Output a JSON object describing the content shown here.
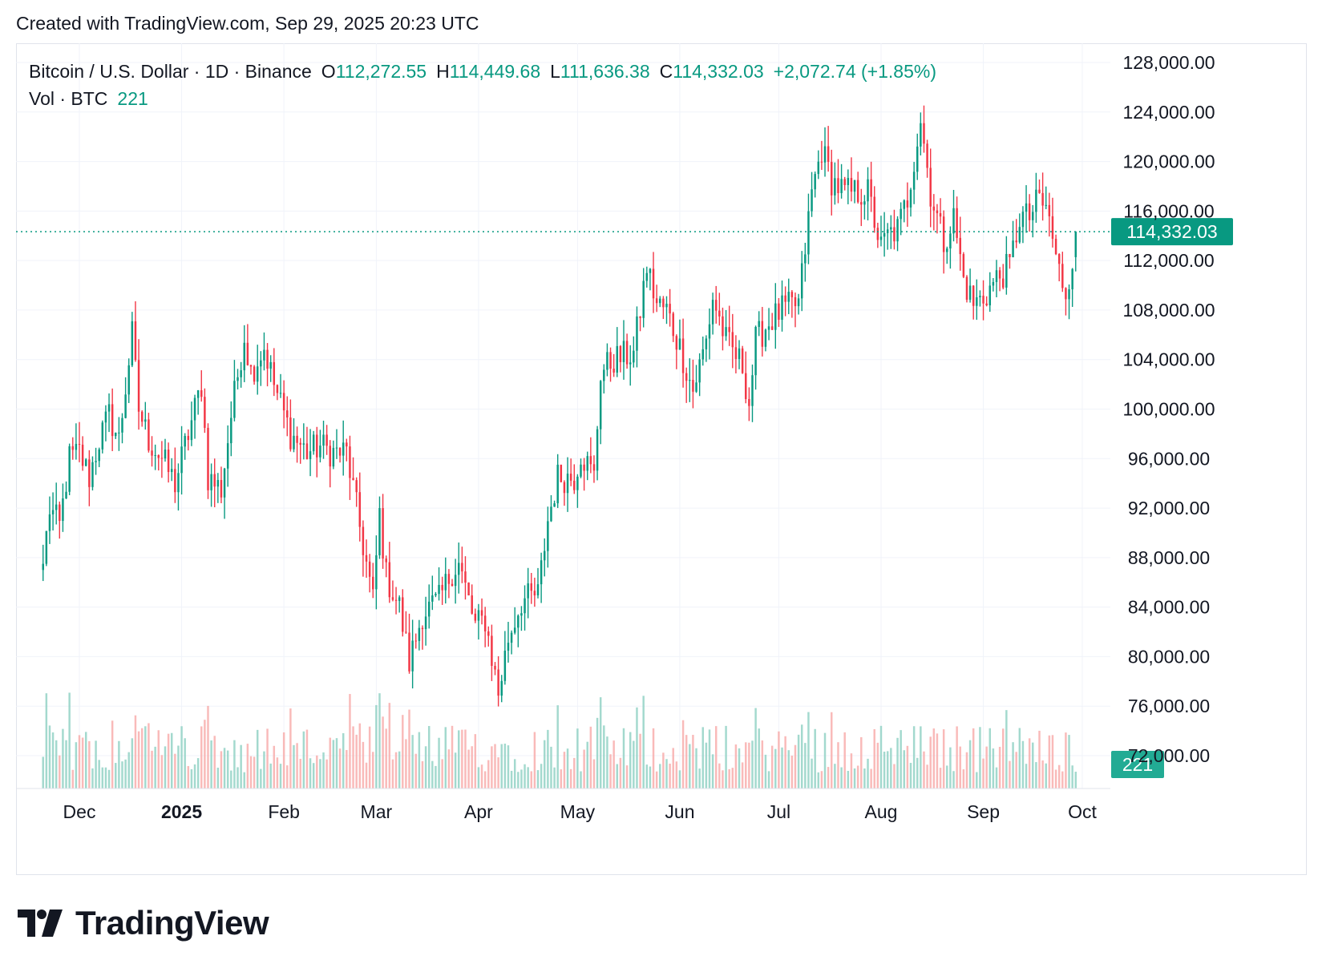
{
  "caption": "Created with TradingView.com, Sep 29, 2025 20:23 UTC",
  "legend": {
    "symbol": "Bitcoin / U.S. Dollar · 1D · Binance",
    "open_label": "O",
    "open": "112,272.55",
    "high_label": "H",
    "high": "114,449.68",
    "low_label": "L",
    "low": "111,636.38",
    "close_label": "C",
    "close": "114,332.03",
    "change": "+2,072.74 (+1.85%)",
    "vol_label": "Vol · BTC",
    "vol": "221"
  },
  "colors": {
    "up": "#089981",
    "down": "#f23645",
    "grid": "#f0f3fa",
    "text": "#131722"
  },
  "chart_data": {
    "type": "candlestick",
    "ylim": [
      72000,
      129000
    ],
    "y_ticks": [
      "128,000.00",
      "124,000.00",
      "120,000.00",
      "116,000.00",
      "112,000.00",
      "108,000.00",
      "104,000.00",
      "100,000.00",
      "96,000.00",
      "92,000.00",
      "88,000.00",
      "84,000.00",
      "80,000.00",
      "76,000.00",
      "72,000.00"
    ],
    "x_ticks": [
      {
        "label": "Dec",
        "date": "2024-12-01",
        "bold": false
      },
      {
        "label": "2025",
        "date": "2025-01-01",
        "bold": true
      },
      {
        "label": "Feb",
        "date": "2025-02-01",
        "bold": false
      },
      {
        "label": "Mar",
        "date": "2025-03-01",
        "bold": false
      },
      {
        "label": "Apr",
        "date": "2025-04-01",
        "bold": false
      },
      {
        "label": "May",
        "date": "2025-05-01",
        "bold": false
      },
      {
        "label": "Jun",
        "date": "2025-06-01",
        "bold": false
      },
      {
        "label": "Jul",
        "date": "2025-07-01",
        "bold": false
      },
      {
        "label": "Aug",
        "date": "2025-08-01",
        "bold": false
      },
      {
        "label": "Sep",
        "date": "2025-09-01",
        "bold": false
      },
      {
        "label": "Oct",
        "date": "2025-10-01",
        "bold": false
      }
    ],
    "current_price": 114332.03,
    "current_price_label": "114,332.03",
    "current_volume_label": "221",
    "path": [
      [
        "2024-11-20",
        87500
      ],
      [
        "2024-11-22",
        92000
      ],
      [
        "2024-11-25",
        90500
      ],
      [
        "2024-11-28",
        96000
      ],
      [
        "2024-12-01",
        96500
      ],
      [
        "2024-12-04",
        94500
      ],
      [
        "2024-12-07",
        97500
      ],
      [
        "2024-12-10",
        99500
      ],
      [
        "2024-12-13",
        97500
      ],
      [
        "2024-12-17",
        106000
      ],
      [
        "2024-12-19",
        100000
      ],
      [
        "2024-12-22",
        97500
      ],
      [
        "2024-12-26",
        96000
      ],
      [
        "2024-12-30",
        94000
      ],
      [
        "2025-01-03",
        98000
      ],
      [
        "2025-01-07",
        102000
      ],
      [
        "2025-01-09",
        94500
      ],
      [
        "2025-01-13",
        93500
      ],
      [
        "2025-01-16",
        99500
      ],
      [
        "2025-01-20",
        106000
      ],
      [
        "2025-01-22",
        103000
      ],
      [
        "2025-01-26",
        105000
      ],
      [
        "2025-01-29",
        102000
      ],
      [
        "2025-02-03",
        98000
      ],
      [
        "2025-02-08",
        96500
      ],
      [
        "2025-02-12",
        97000
      ],
      [
        "2025-02-16",
        96500
      ],
      [
        "2025-02-20",
        96500
      ],
      [
        "2025-02-25",
        89000
      ],
      [
        "2025-02-28",
        84500
      ],
      [
        "2025-03-02",
        91500
      ],
      [
        "2025-03-04",
        86500
      ],
      [
        "2025-03-08",
        84000
      ],
      [
        "2025-03-11",
        79500
      ],
      [
        "2025-03-15",
        83500
      ],
      [
        "2025-03-20",
        84500
      ],
      [
        "2025-03-24",
        87000
      ],
      [
        "2025-03-26",
        87500
      ],
      [
        "2025-03-31",
        82500
      ],
      [
        "2025-04-03",
        83000
      ],
      [
        "2025-04-07",
        77000
      ],
      [
        "2025-04-10",
        81500
      ],
      [
        "2025-04-14",
        84500
      ],
      [
        "2025-04-19",
        85000
      ],
      [
        "2025-04-22",
        91000
      ],
      [
        "2025-04-25",
        94500
      ],
      [
        "2025-04-30",
        94500
      ],
      [
        "2025-05-02",
        96500
      ],
      [
        "2025-05-06",
        94500
      ],
      [
        "2025-05-08",
        103000
      ],
      [
        "2025-05-12",
        104000
      ],
      [
        "2025-05-18",
        104500
      ],
      [
        "2025-05-22",
        111500
      ],
      [
        "2025-05-25",
        108500
      ],
      [
        "2025-05-28",
        108000
      ],
      [
        "2025-06-01",
        105000
      ],
      [
        "2025-06-05",
        101500
      ],
      [
        "2025-06-09",
        105500
      ],
      [
        "2025-06-11",
        109000
      ],
      [
        "2025-06-15",
        105500
      ],
      [
        "2025-06-20",
        103500
      ],
      [
        "2025-06-22",
        100500
      ],
      [
        "2025-06-24",
        105500
      ],
      [
        "2025-06-28",
        107000
      ],
      [
        "2025-07-02",
        108000
      ],
      [
        "2025-07-07",
        108500
      ],
      [
        "2025-07-11",
        117500
      ],
      [
        "2025-07-14",
        121000
      ],
      [
        "2025-07-17",
        118500
      ],
      [
        "2025-07-21",
        117500
      ],
      [
        "2025-07-25",
        117500
      ],
      [
        "2025-07-28",
        117500
      ],
      [
        "2025-08-01",
        113000
      ],
      [
        "2025-08-03",
        114000
      ],
      [
        "2025-08-06",
        114500
      ],
      [
        "2025-08-09",
        117000
      ],
      [
        "2025-08-13",
        123500
      ],
      [
        "2025-08-16",
        117500
      ],
      [
        "2025-08-20",
        113500
      ],
      [
        "2025-08-23",
        115500
      ],
      [
        "2025-08-26",
        110500
      ],
      [
        "2025-08-29",
        108500
      ],
      [
        "2025-09-01",
        109000
      ],
      [
        "2025-09-05",
        110500
      ],
      [
        "2025-09-09",
        111500
      ],
      [
        "2025-09-12",
        115500
      ],
      [
        "2025-09-15",
        115500
      ],
      [
        "2025-09-18",
        117000
      ],
      [
        "2025-09-21",
        115500
      ],
      [
        "2025-09-23",
        112000
      ],
      [
        "2025-09-26",
        109500
      ],
      [
        "2025-09-28",
        112200
      ],
      [
        "2025-09-29",
        114332
      ]
    ]
  }
}
